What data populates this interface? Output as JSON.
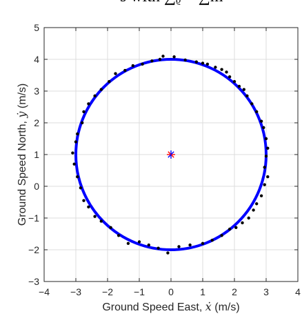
{
  "header_fragment": "s with ∑ᵨ < ∑m",
  "chart_data": {
    "type": "scatter",
    "title": "",
    "xlabel": {
      "prefix": "Ground Speed East, ",
      "symbol": "ẋ",
      "suffix": " (m/s)"
    },
    "ylabel": {
      "prefix": "Ground Speed North, ",
      "symbol": "ẏ",
      "suffix": " (m/s)"
    },
    "xlim": [
      -4,
      4
    ],
    "ylim": [
      -3,
      5
    ],
    "xticks": [
      -4,
      -3,
      -2,
      -1,
      0,
      1,
      2,
      3,
      4
    ],
    "yticks": [
      -3,
      -2,
      -1,
      0,
      1,
      2,
      3,
      4,
      5
    ],
    "grid": true,
    "colors": {
      "circle": "#0000ff",
      "points": "#000000",
      "center_star_a": "#ff0000",
      "center_star_b": "#0000ff"
    },
    "fitted_circle": {
      "center": [
        0,
        1
      ],
      "radius": 3.0
    },
    "center_marker": {
      "x": 0,
      "y": 1,
      "marker": "star"
    },
    "points": [
      [
        -0.25,
        4.1
      ],
      [
        0.1,
        4.08
      ],
      [
        0.45,
        3.98
      ],
      [
        0.8,
        3.92
      ],
      [
        1.0,
        3.88
      ],
      [
        1.15,
        3.85
      ],
      [
        1.4,
        3.75
      ],
      [
        1.6,
        3.68
      ],
      [
        1.75,
        3.6
      ],
      [
        1.85,
        3.45
      ],
      [
        2.0,
        3.3
      ],
      [
        2.15,
        3.15
      ],
      [
        2.3,
        3.05
      ],
      [
        2.4,
        2.85
      ],
      [
        2.55,
        2.6
      ],
      [
        2.7,
        2.35
      ],
      [
        2.85,
        2.05
      ],
      [
        2.92,
        1.85
      ],
      [
        3.0,
        1.5
      ],
      [
        3.05,
        1.2
      ],
      [
        3.0,
        0.95
      ],
      [
        2.95,
        0.6
      ],
      [
        3.05,
        0.3
      ],
      [
        2.95,
        0.05
      ],
      [
        2.85,
        -0.3
      ],
      [
        2.7,
        -0.55
      ],
      [
        2.6,
        -0.75
      ],
      [
        2.45,
        -1.0
      ],
      [
        2.25,
        -1.15
      ],
      [
        2.05,
        -1.3
      ],
      [
        1.85,
        -1.35
      ],
      [
        1.6,
        -1.55
      ],
      [
        1.3,
        -1.7
      ],
      [
        1.0,
        -1.8
      ],
      [
        0.6,
        -1.85
      ],
      [
        0.25,
        -1.9
      ],
      [
        -0.1,
        -2.1
      ],
      [
        -0.4,
        -1.95
      ],
      [
        -0.7,
        -1.85
      ],
      [
        -1.0,
        -1.75
      ],
      [
        -1.35,
        -1.8
      ],
      [
        -1.65,
        -1.55
      ],
      [
        -1.9,
        -1.3
      ],
      [
        -2.2,
        -1.1
      ],
      [
        -2.4,
        -0.95
      ],
      [
        -2.6,
        -0.65
      ],
      [
        -2.75,
        -0.45
      ],
      [
        -2.85,
        -0.05
      ],
      [
        -2.95,
        0.3
      ],
      [
        -3.05,
        0.7
      ],
      [
        -3.1,
        1.05
      ],
      [
        -3.0,
        1.4
      ],
      [
        -2.95,
        1.65
      ],
      [
        -2.8,
        2.0
      ],
      [
        -2.75,
        2.35
      ],
      [
        -2.6,
        2.6
      ],
      [
        -2.4,
        2.85
      ],
      [
        -2.2,
        3.05
      ],
      [
        -1.95,
        3.3
      ],
      [
        -1.75,
        3.55
      ],
      [
        -1.45,
        3.65
      ],
      [
        -1.2,
        3.8
      ],
      [
        -0.9,
        3.85
      ],
      [
        -0.6,
        3.95
      ],
      [
        -0.35,
        4.0
      ]
    ]
  }
}
